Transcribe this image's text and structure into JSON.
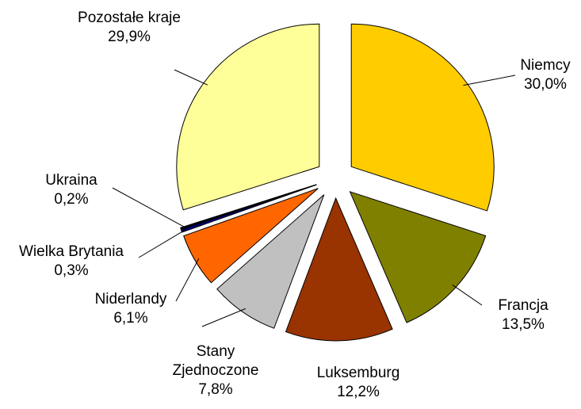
{
  "chart_data": {
    "type": "pie",
    "categories": [
      "Niemcy",
      "Francja",
      "Luksemburg",
      "Stany Zjednoczone",
      "Niderlandy",
      "Wielka Brytania",
      "Ukraina",
      "Pozostałe kraje"
    ],
    "values": [
      30.0,
      13.5,
      12.2,
      7.8,
      6.1,
      0.3,
      0.2,
      29.9
    ],
    "value_labels": [
      "30,0%",
      "13,5%",
      "12,2%",
      "7,8%",
      "6,1%",
      "0,3%",
      "0,2%",
      "29,9%"
    ],
    "colors": [
      "#ffcc00",
      "#808000",
      "#993300",
      "#c0c0c0",
      "#ff6600",
      "#000080",
      "#000000",
      "#ffff99"
    ]
  }
}
